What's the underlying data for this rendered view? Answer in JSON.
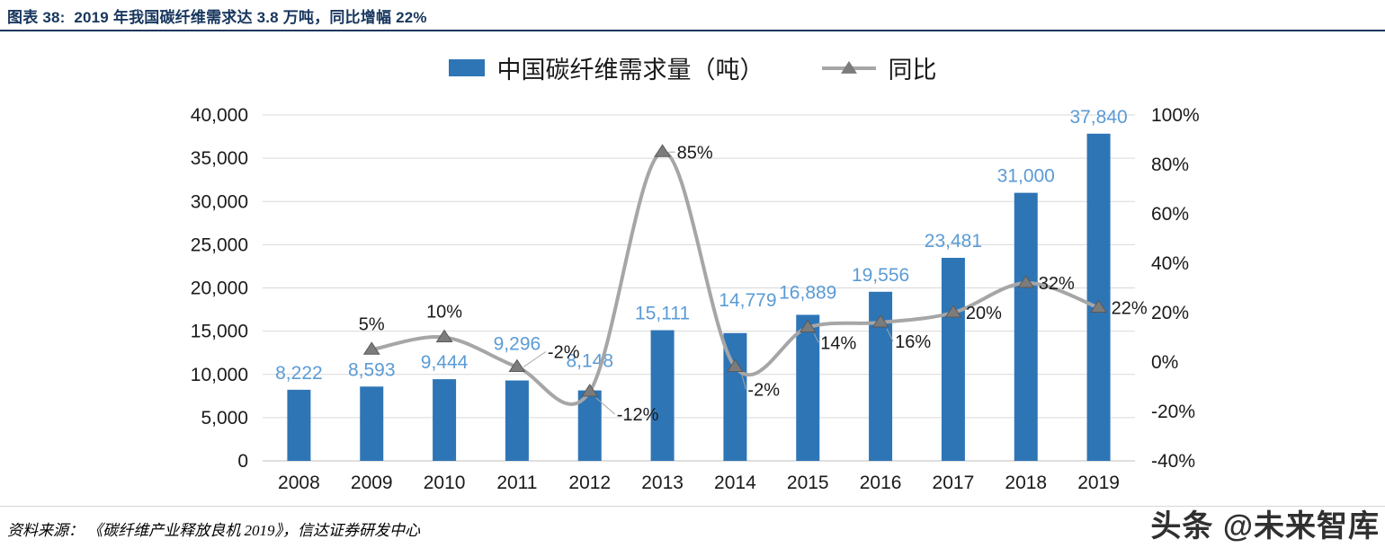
{
  "header": {
    "title": "图表 38:  2019 年我国碳纤维需求达 3.8 万吨，同比增幅 22%"
  },
  "legend": [
    {
      "label": "中国碳纤维需求量（吨）",
      "type": "bar",
      "color": "#2E75B6"
    },
    {
      "label": "同比",
      "type": "line",
      "color": "#A6A6A6",
      "marker_color": "#7C7C7C"
    }
  ],
  "chart_data": {
    "type": "bar+line",
    "title": "",
    "xlabel": "",
    "ylabel": "",
    "grid": true,
    "legend_position": "top",
    "categories": [
      "2008",
      "2009",
      "2010",
      "2011",
      "2012",
      "2013",
      "2014",
      "2015",
      "2016",
      "2017",
      "2018",
      "2019"
    ],
    "series": [
      {
        "name": "中国碳纤维需求量（吨）",
        "type": "bar",
        "axis": "left",
        "color": "#2E75B6",
        "label_color": "#5B9BD5",
        "values": [
          8222,
          8593,
          9444,
          9296,
          8148,
          15111,
          14779,
          16889,
          19556,
          23481,
          31000,
          37840
        ],
        "labels": [
          "8,222",
          "8,593",
          "9,444",
          "9,296",
          "8,148",
          "15,111",
          "14,779",
          "16,889",
          "19,556",
          "23,481",
          "31,000",
          "37,840"
        ]
      },
      {
        "name": "同比",
        "type": "line",
        "axis": "right",
        "color": "#A6A6A6",
        "marker_color": "#7C7C7C",
        "values": [
          null,
          5,
          10,
          -2,
          -12,
          85,
          -2,
          14,
          16,
          20,
          32,
          22
        ],
        "labels": [
          null,
          "5%",
          "10%",
          "-2%",
          "-12%",
          "85%",
          "-2%",
          "14%",
          "16%",
          "20%",
          "32%",
          "22%"
        ]
      }
    ],
    "left_axis": {
      "min": 0,
      "max": 40000,
      "step": 5000,
      "ticks": [
        "0",
        "5,000",
        "10,000",
        "15,000",
        "20,000",
        "25,000",
        "30,000",
        "35,000",
        "40,000"
      ]
    },
    "right_axis": {
      "min": -40,
      "max": 100,
      "step": 20,
      "ticks": [
        "-40%",
        "-20%",
        "0%",
        "20%",
        "40%",
        "60%",
        "80%",
        "100%"
      ]
    }
  },
  "footer": {
    "source": "资料来源： 《碳纤维产业释放良机 2019》，信达证券研发中心",
    "watermark": "头条 @未来智库"
  }
}
